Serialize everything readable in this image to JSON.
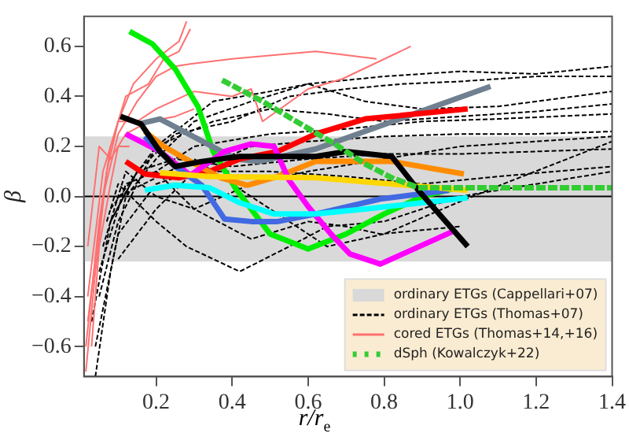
{
  "chart_data": {
    "type": "line",
    "xlabel": "r/r$_{e}$",
    "ylabel": "β",
    "xlim": [
      0.01,
      1.4
    ],
    "ylim": [
      -0.72,
      0.72
    ],
    "xticks": [
      0.2,
      0.4,
      0.6,
      0.8,
      {
        "value": 1.0,
        "label": "1.0"
      },
      1.2,
      1.4
    ],
    "yticks": [
      {
        "value": -0.6,
        "label": "−0.6"
      },
      {
        "value": -0.4,
        "label": "−0.4"
      },
      {
        "value": -0.2,
        "label": "−0.2"
      },
      {
        "value": 0,
        "label": "0.0"
      },
      0.2,
      0.4,
      0.6
    ],
    "grid": false,
    "legend": "bottom right",
    "marker": "none",
    "bands": [
      {
        "axis": "y",
        "from": -0.26,
        "to": 0.24,
        "label": "ordinary ETGs (Cappellari+07)",
        "color": "#d9d9d9"
      }
    ],
    "ref_lines": [
      {
        "axis": "y",
        "value": 0,
        "color": "#000000",
        "line_style": "solid"
      }
    ],
    "series": [
      {
        "name": "ordinary ETGs (Thomas+07)",
        "color": "#000000",
        "line_style": "dashed",
        "x": [
          0.04,
          0.08,
          0.12,
          0.2,
          0.3,
          0.45,
          0.6,
          0.8,
          1.0,
          1.2,
          1.4
        ],
        "values": [
          -0.72,
          -0.3,
          0.0,
          0.15,
          0.3,
          0.38,
          0.45,
          0.48,
          0.5,
          0.49,
          0.52
        ]
      },
      {
        "color": "#000000",
        "line_style": "dashed",
        "x": [
          0.03,
          0.08,
          0.15,
          0.25,
          0.4,
          0.55,
          0.7,
          0.85,
          1.0,
          1.2,
          1.4
        ],
        "values": [
          -0.5,
          -0.1,
          0.1,
          0.25,
          0.3,
          0.4,
          0.43,
          0.45,
          0.46,
          0.48,
          0.48
        ]
      },
      {
        "color": "#000000",
        "line_style": "dashed",
        "x": [
          0.05,
          0.1,
          0.2,
          0.35,
          0.5,
          0.65,
          0.8,
          1.0,
          1.2,
          1.4
        ],
        "values": [
          -0.4,
          -0.1,
          0.2,
          0.3,
          0.35,
          0.33,
          0.3,
          0.32,
          0.34,
          0.37
        ]
      },
      {
        "color": "#000000",
        "line_style": "dashed",
        "x": [
          0.05,
          0.12,
          0.2,
          0.3,
          0.5,
          0.7,
          0.9,
          1.1,
          1.4
        ],
        "values": [
          -0.3,
          0.05,
          0.1,
          0.2,
          0.25,
          0.27,
          0.3,
          0.31,
          0.33
        ]
      },
      {
        "color": "#000000",
        "line_style": "dashed",
        "x": [
          0.1,
          0.2,
          0.3,
          0.45,
          0.6,
          0.8,
          1.0,
          1.2,
          1.4
        ],
        "values": [
          -0.25,
          -0.05,
          0.1,
          0.2,
          0.22,
          0.24,
          0.25,
          0.25,
          0.26
        ]
      },
      {
        "color": "#000000",
        "line_style": "dashed",
        "x": [
          0.06,
          0.12,
          0.2,
          0.3,
          0.45,
          0.6,
          0.8,
          1.0,
          1.2,
          1.4
        ],
        "values": [
          -0.2,
          0.1,
          0.0,
          -0.05,
          0.05,
          0.1,
          0.15,
          0.2,
          0.22,
          0.24
        ]
      },
      {
        "color": "#000000",
        "line_style": "dashed",
        "x": [
          0.08,
          0.15,
          0.25,
          0.4,
          0.6,
          0.8,
          1.0,
          1.2,
          1.4
        ],
        "values": [
          -0.1,
          0.1,
          0.15,
          0.12,
          0.15,
          0.17,
          0.17,
          0.18,
          0.19
        ]
      },
      {
        "color": "#000000",
        "line_style": "dashed",
        "x": [
          0.04,
          0.1,
          0.2,
          0.3,
          0.5,
          0.7,
          0.9,
          1.1,
          1.4
        ],
        "values": [
          -0.6,
          -0.15,
          0.05,
          0.1,
          0.1,
          0.08,
          0.05,
          0.08,
          0.12
        ]
      },
      {
        "color": "#000000",
        "line_style": "dashed",
        "x": [
          0.07,
          0.1,
          0.2,
          0.28,
          0.42,
          0.55,
          0.65,
          0.8,
          1.0,
          1.2,
          1.4
        ],
        "values": [
          -0.1,
          0.05,
          -0.1,
          -0.2,
          -0.3,
          -0.2,
          -0.12,
          -0.1,
          0.0,
          0.05,
          0.1
        ]
      },
      {
        "color": "#000000",
        "line_style": "dashed",
        "x": [
          0.2,
          0.3,
          0.45,
          0.6,
          0.7,
          0.79,
          1.0
        ],
        "values": [
          0.1,
          -0.05,
          -0.17,
          -0.1,
          -0.12,
          -0.15,
          -0.12
        ]
      },
      {
        "color": "#000000",
        "line_style": "dashed",
        "x": [
          0.1,
          0.3,
          0.5,
          0.65,
          0.8,
          1.0,
          1.13,
          1.4
        ],
        "values": [
          0.0,
          0.15,
          -0.05,
          -0.2,
          -0.15,
          -0.02,
          0.06,
          0.22
        ]
      },
      {
        "color": "#000000",
        "line_style": "dashed",
        "x": [
          0.08,
          0.2,
          0.35,
          0.5,
          0.6,
          0.75,
          0.9,
          1.1,
          1.4
        ],
        "values": [
          -0.05,
          0.2,
          0.38,
          0.42,
          0.45,
          0.38,
          0.35,
          0.36,
          0.42
        ]
      },
      {
        "name": "cored ETGs (Thomas+14,+16)",
        "color": "#ff7070",
        "line_style": "solid",
        "x": [
          0.015,
          0.04,
          0.07,
          0.1,
          0.14,
          0.2,
          0.26,
          0.28
        ],
        "values": [
          -0.7,
          -0.3,
          0.1,
          0.3,
          0.45,
          0.55,
          0.62,
          0.7
        ]
      },
      {
        "color": "#ff7070",
        "line_style": "solid",
        "x": [
          0.015,
          0.05,
          0.08,
          0.12,
          0.18,
          0.22,
          0.26,
          0.29
        ],
        "values": [
          -0.6,
          -0.1,
          0.2,
          0.4,
          0.45,
          0.55,
          0.58,
          0.67
        ]
      },
      {
        "color": "#ff7070",
        "line_style": "solid",
        "x": [
          0.02,
          0.06,
          0.1,
          0.15,
          0.2,
          0.25,
          0.29,
          0.4,
          0.62,
          0.78
        ],
        "values": [
          -0.5,
          0.0,
          0.25,
          0.38,
          0.48,
          0.52,
          0.53,
          0.55,
          0.58,
          0.55
        ]
      },
      {
        "color": "#ff7070",
        "line_style": "solid",
        "x": [
          0.02,
          0.06,
          0.1,
          0.15,
          0.2,
          0.3,
          0.4,
          0.45,
          0.48,
          0.6,
          0.69,
          0.87
        ],
        "values": [
          -0.4,
          0.1,
          0.3,
          0.3,
          0.35,
          0.42,
          0.4,
          0.43,
          0.3,
          0.43,
          0.47,
          0.6
        ]
      },
      {
        "color": "#ff7070",
        "line_style": "solid",
        "x": [
          0.02,
          0.05,
          0.08,
          0.12,
          0.18,
          0.25,
          0.3
        ],
        "values": [
          -0.2,
          0.2,
          0.15,
          0.25,
          0.3,
          0.32,
          0.35
        ]
      },
      {
        "color": "#ff7070",
        "line_style": "solid",
        "x": [
          0.03,
          0.05,
          0.08,
          0.1,
          0.13
        ],
        "values": [
          -0.6,
          -0.2,
          0.05,
          0.2,
          0.2
        ]
      },
      {
        "color": "#00ee00",
        "line_style": "solid",
        "x": [
          0.13,
          0.19,
          0.25,
          0.31,
          0.35,
          0.41,
          0.5,
          0.6,
          0.7,
          0.8,
          0.9,
          0.98
        ],
        "values": [
          0.66,
          0.61,
          0.51,
          0.36,
          0.18,
          0.03,
          -0.15,
          -0.21,
          -0.15,
          -0.07,
          0.0,
          0.03
        ]
      },
      {
        "color": "#708090",
        "line_style": "solid",
        "x": [
          0.155,
          0.21,
          0.41,
          0.47,
          0.62,
          1.08
        ],
        "values": [
          0.29,
          0.31,
          0.15,
          0.14,
          0.19,
          0.44
        ]
      },
      {
        "color": "#ff0000",
        "line_style": "solid",
        "x": [
          0.12,
          0.17,
          0.26,
          0.34,
          0.42,
          0.52,
          0.62,
          0.75,
          1.02
        ],
        "values": [
          0.14,
          0.09,
          0.075,
          0.1,
          0.15,
          0.18,
          0.25,
          0.31,
          0.35
        ]
      },
      {
        "color": "#ff8c00",
        "line_style": "solid",
        "x": [
          0.17,
          0.22,
          0.29,
          0.37,
          0.44,
          0.52,
          0.62,
          0.82,
          1.01
        ],
        "values": [
          0.26,
          0.2,
          0.14,
          0.075,
          0.045,
          0.08,
          0.14,
          0.14,
          0.09
        ]
      },
      {
        "color": "#ff00ff",
        "line_style": "solid",
        "x": [
          0.12,
          0.21,
          0.29,
          0.38,
          0.45,
          0.51,
          0.55,
          0.6,
          0.66,
          0.71,
          0.79,
          0.98
        ],
        "values": [
          0.25,
          0.18,
          0.085,
          0.18,
          0.21,
          0.2,
          0.065,
          -0.04,
          -0.15,
          -0.23,
          -0.27,
          -0.14
        ]
      },
      {
        "color": "#4169e1",
        "line_style": "solid",
        "x": [
          0.17,
          0.25,
          0.32,
          0.38,
          0.45,
          0.52,
          0.62,
          0.79,
          0.97
        ],
        "values": [
          0.24,
          0.12,
          0.045,
          -0.09,
          -0.1,
          -0.1,
          -0.07,
          -0.01,
          0.025
        ]
      },
      {
        "color": "#00ffff",
        "line_style": "solid",
        "x": [
          0.17,
          0.25,
          0.34,
          0.42,
          0.51,
          0.62,
          0.75,
          1.02
        ],
        "values": [
          0.025,
          0.045,
          0.035,
          -0.025,
          -0.07,
          -0.07,
          -0.05,
          -0.005
        ]
      },
      {
        "color": "#ffd700",
        "line_style": "solid",
        "x": [
          0.21,
          0.34,
          0.62,
          1.02
        ],
        "values": [
          0.095,
          0.08,
          0.075,
          0.025
        ]
      },
      {
        "color": "#000000",
        "line_style": "solid",
        "x": [
          0.106,
          0.16,
          0.21,
          0.25,
          0.32,
          0.42,
          0.62,
          0.7,
          0.82,
          0.89,
          1.02
        ],
        "values": [
          0.32,
          0.29,
          0.18,
          0.12,
          0.14,
          0.16,
          0.16,
          0.18,
          0.16,
          0.025,
          -0.2
        ]
      },
      {
        "name": "dSph (Kowalczyk+22)",
        "color": "#33cc33",
        "line_style": "dotted",
        "x": [
          0.38,
          0.48,
          0.58,
          0.67,
          0.75,
          0.82,
          0.89,
          1.4
        ],
        "values": [
          0.46,
          0.38,
          0.29,
          0.21,
          0.13,
          0.075,
          0.035,
          0.035
        ]
      }
    ]
  }
}
